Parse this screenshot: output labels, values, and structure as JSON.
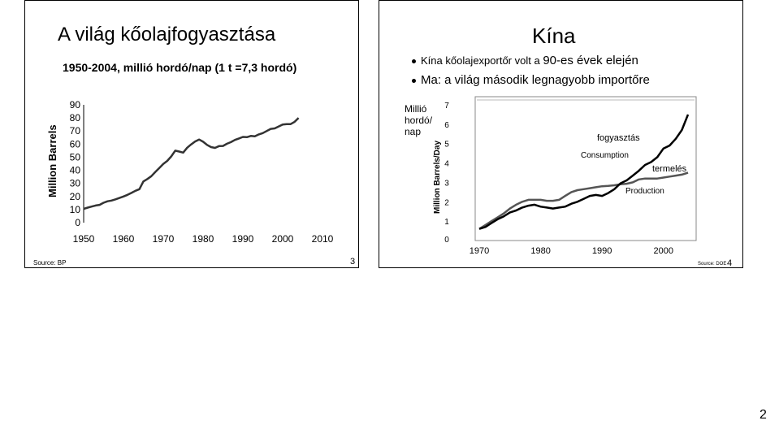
{
  "slide1": {
    "title": "A világ kőolajfogyasztása",
    "subtitle": "1950-2004, millió hordó/nap (1 t =7,3 hordó)",
    "source": "Source: BP",
    "page_number": "3",
    "chart_data": {
      "type": "line",
      "ylabel": "Million Barrels",
      "xlim": [
        1950,
        2010
      ],
      "ylim": [
        0,
        90
      ],
      "x_ticks": [
        "1950",
        "1960",
        "1970",
        "1980",
        "1990",
        "2000",
        "2010"
      ],
      "y_ticks": [
        "90",
        "80",
        "70",
        "60",
        "50",
        "40",
        "30",
        "20",
        "10",
        "0"
      ],
      "series": [
        {
          "x": [
            1950,
            1951,
            1952,
            1953,
            1954,
            1955,
            1956,
            1957,
            1958,
            1959,
            1960,
            1961,
            1962,
            1963,
            1964,
            1965,
            1966,
            1967,
            1968,
            1969,
            1970,
            1971,
            1972,
            1973,
            1974,
            1975,
            1976,
            1977,
            1978,
            1979,
            1980,
            1981,
            1982,
            1983,
            1984,
            1985,
            1986,
            1987,
            1988,
            1989,
            1990,
            1991,
            1992,
            1993,
            1994,
            1995,
            1996,
            1997,
            1998,
            1999,
            2000,
            2001,
            2002,
            2003,
            2004
          ],
          "values": [
            10.5,
            11.5,
            12.3,
            13.1,
            13.6,
            15.2,
            16.3,
            16.9,
            17.8,
            18.9,
            20.0,
            21.2,
            22.7,
            24.3,
            25.6,
            31.5,
            33.3,
            35.5,
            38.7,
            41.8,
            44.9,
            47.2,
            50.6,
            55.0,
            54.3,
            53.5,
            57.2,
            59.8,
            62.0,
            63.5,
            61.8,
            59.4,
            57.7,
            57.1,
            58.5,
            58.6,
            60.3,
            61.5,
            63.2,
            64.3,
            65.5,
            65.3,
            66.2,
            66.0,
            67.4,
            68.4,
            70.0,
            71.6,
            72.0,
            73.5,
            74.9,
            75.2,
            75.3,
            77.0,
            80.0
          ]
        }
      ]
    }
  },
  "slide2": {
    "title": "Kína",
    "bullets": [
      {
        "before": "Kína kőolajexportőr volt a ",
        "emph": "90-es évek elején"
      },
      {
        "before": "",
        "emph": "Ma: a világ második legnagyobb importőre"
      }
    ],
    "unit_label": "Millió\nhordó/\nnap",
    "source": "Source: DOE",
    "page_number": "4",
    "chart_data": {
      "type": "line",
      "ylabel": "Million Barrels/Day",
      "xlim": [
        1970,
        2004
      ],
      "ylim": [
        0,
        7
      ],
      "x_ticks": [
        "1970",
        "1980",
        "1990",
        "2000"
      ],
      "y_ticks": [
        "7",
        "6",
        "5",
        "4",
        "3",
        "2",
        "1",
        "0"
      ],
      "annotations": [
        "fogyasztás",
        "Consumption",
        "termelés",
        "Production"
      ],
      "series": [
        {
          "name": "Consumption",
          "x": [
            1970,
            1971,
            1972,
            1973,
            1974,
            1975,
            1976,
            1977,
            1978,
            1979,
            1980,
            1981,
            1982,
            1983,
            1984,
            1985,
            1986,
            1987,
            1988,
            1989,
            1990,
            1991,
            1992,
            1993,
            1994,
            1995,
            1996,
            1997,
            1998,
            1999,
            2000,
            2001,
            2002,
            2003,
            2004
          ],
          "values": [
            0.6,
            0.7,
            0.9,
            1.1,
            1.25,
            1.45,
            1.55,
            1.7,
            1.8,
            1.85,
            1.75,
            1.7,
            1.65,
            1.7,
            1.75,
            1.9,
            2.0,
            2.15,
            2.3,
            2.35,
            2.3,
            2.45,
            2.65,
            2.95,
            3.1,
            3.35,
            3.6,
            3.9,
            4.05,
            4.3,
            4.75,
            4.9,
            5.25,
            5.7,
            6.5
          ]
        },
        {
          "name": "Production",
          "x": [
            1970,
            1971,
            1972,
            1973,
            1974,
            1975,
            1976,
            1977,
            1978,
            1979,
            1980,
            1981,
            1982,
            1983,
            1984,
            1985,
            1986,
            1987,
            1988,
            1989,
            1990,
            1991,
            1992,
            1993,
            1994,
            1995,
            1996,
            1997,
            1998,
            1999,
            2000,
            2001,
            2002,
            2003,
            2004
          ],
          "values": [
            0.6,
            0.8,
            1.0,
            1.2,
            1.4,
            1.65,
            1.85,
            2.0,
            2.1,
            2.1,
            2.1,
            2.05,
            2.05,
            2.1,
            2.3,
            2.5,
            2.6,
            2.65,
            2.7,
            2.75,
            2.8,
            2.82,
            2.85,
            2.9,
            2.93,
            3.0,
            3.15,
            3.2,
            3.2,
            3.2,
            3.25,
            3.3,
            3.35,
            3.4,
            3.5
          ]
        }
      ]
    }
  },
  "page_footer_number": "2"
}
